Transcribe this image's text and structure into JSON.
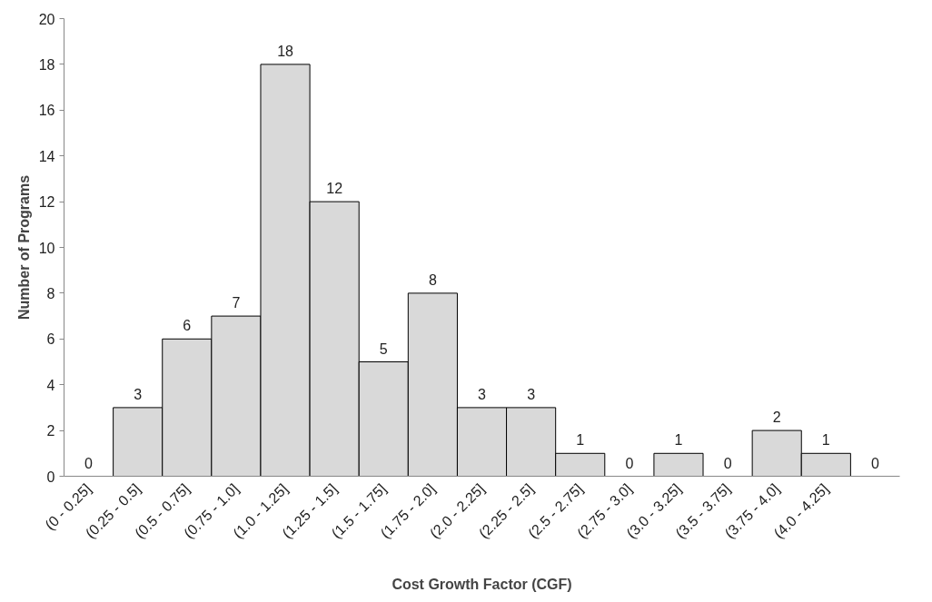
{
  "chart_data": {
    "type": "bar",
    "xlabel": "Cost Growth Factor (CGF)",
    "ylabel": "Number of Programs",
    "categories": [
      "(0 - 0.25]",
      "(0.25 - 0.5]",
      "(0.5 - 0.75]",
      "(0.75 - 1.0]",
      "(1.0 - 1.25]",
      "(1.25 - 1.5]",
      "(1.5 - 1.75]",
      "(1.75 - 2.0]",
      "(2.0 - 2.25]",
      "(2.25 - 2.5]",
      "(2.5 - 2.75]",
      "(2.75 - 3.0]",
      "(3.0 - 3.25]",
      "(3.5 - 3.75]",
      "(3.75 - 4.0]",
      "(4.0 - 4.25]",
      null
    ],
    "values": [
      0,
      3,
      6,
      7,
      18,
      12,
      5,
      8,
      3,
      3,
      1,
      0,
      1,
      0,
      2,
      1,
      0
    ],
    "color": "#d9d9d9",
    "ylim": [
      0,
      20
    ],
    "yticks": [
      0,
      2,
      4,
      6,
      8,
      10,
      12,
      14,
      16,
      18,
      20
    ],
    "data_labels": true,
    "grid": false
  }
}
